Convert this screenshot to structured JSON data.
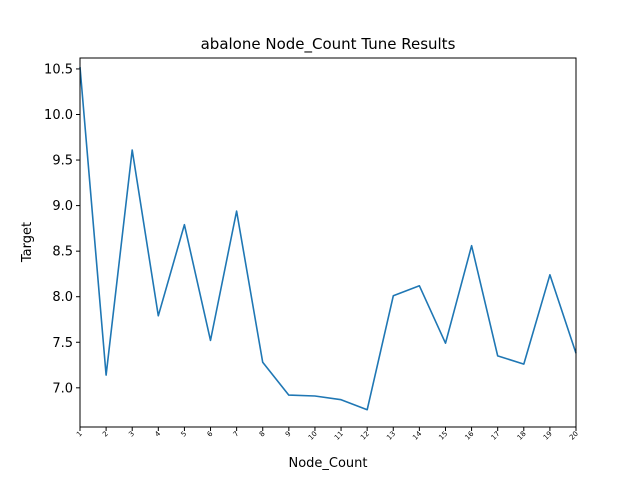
{
  "chart_data": {
    "type": "line",
    "title": "abalone Node_Count Tune Results",
    "xlabel": "Node_Count",
    "ylabel": "Target",
    "x": [
      1,
      2,
      3,
      4,
      5,
      6,
      7,
      8,
      9,
      10,
      11,
      12,
      13,
      14,
      15,
      16,
      17,
      18,
      19,
      20
    ],
    "x_tick_labels": [
      "1",
      "2",
      "3",
      "4",
      "5",
      "6",
      "7",
      "8",
      "9",
      "10",
      "11",
      "12",
      "13",
      "14",
      "15",
      "16",
      "17",
      "18",
      "19",
      "20"
    ],
    "series": [
      {
        "values": [
          10.52,
          7.14,
          9.61,
          7.79,
          8.79,
          7.52,
          8.94,
          7.28,
          6.92,
          6.91,
          6.87,
          6.76,
          8.01,
          8.12,
          7.49,
          8.56,
          7.35,
          7.26,
          8.24,
          7.38
        ],
        "color": "#1f77b4"
      }
    ],
    "xlim": [
      1,
      20
    ],
    "ylim": [
      6.57,
      10.62
    ],
    "y_ticks": [
      7.0,
      7.5,
      8.0,
      8.5,
      9.0,
      9.5,
      10.0,
      10.5
    ],
    "y_tick_labels": [
      "7.0",
      "7.5",
      "8.0",
      "8.5",
      "9.0",
      "9.5",
      "10.0",
      "10.5"
    ],
    "grid": false,
    "legend": "none"
  }
}
